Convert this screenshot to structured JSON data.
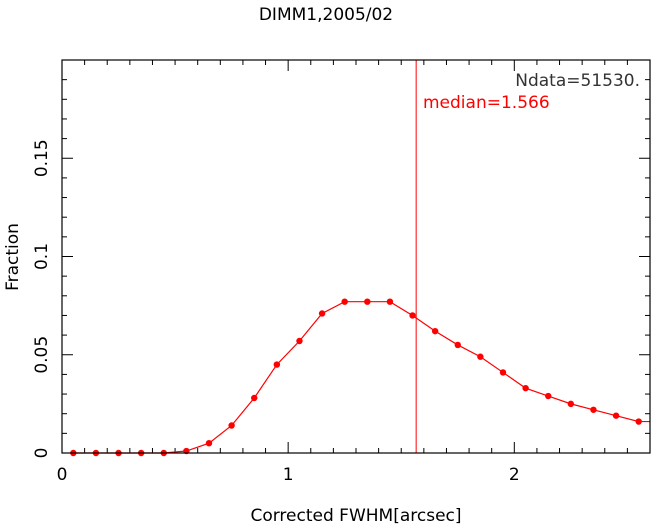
{
  "chart_data": {
    "type": "line",
    "title": "DIMM1,2005/02",
    "xlabel": "Corrected FWHM[arcsec]",
    "ylabel": "Fraction",
    "xlim": [
      0,
      2.6
    ],
    "ylim": [
      0,
      0.2
    ],
    "xticks": [
      {
        "value": 0,
        "label": "0"
      },
      {
        "value": 1,
        "label": "1"
      },
      {
        "value": 2,
        "label": "2"
      }
    ],
    "yticks": [
      {
        "value": 0,
        "label": "0"
      },
      {
        "value": 0.05,
        "label": "0.05"
      },
      {
        "value": 0.1,
        "label": "0.1"
      },
      {
        "value": 0.15,
        "label": "0.15"
      }
    ],
    "x_minor_step": 0.1,
    "y_minor_step": 0.01,
    "grid": false,
    "series": [
      {
        "color": "#ff0000",
        "x": [
          0.05,
          0.15,
          0.25,
          0.35,
          0.45,
          0.55,
          0.65,
          0.75,
          0.85,
          0.95,
          1.05,
          1.15,
          1.25,
          1.35,
          1.45,
          1.55,
          1.65,
          1.75,
          1.85,
          1.95,
          2.05,
          2.15,
          2.25,
          2.35,
          2.45,
          2.55,
          2.6
        ],
        "y": [
          0.0,
          0.0,
          0.0,
          0.0,
          0.0,
          0.001,
          0.005,
          0.014,
          0.028,
          0.045,
          0.057,
          0.071,
          0.077,
          0.077,
          0.077,
          0.07,
          0.062,
          0.055,
          0.049,
          0.041,
          0.033,
          0.029,
          0.025,
          0.022,
          0.019,
          0.016,
          0.016
        ]
      }
    ],
    "median_line": {
      "x": 1.566,
      "color": "#ff0000"
    },
    "annotations": [
      {
        "text": "Ndata=51530.",
        "color": "#333333"
      },
      {
        "text": "median=1.566",
        "color": "#ff0000"
      }
    ]
  }
}
